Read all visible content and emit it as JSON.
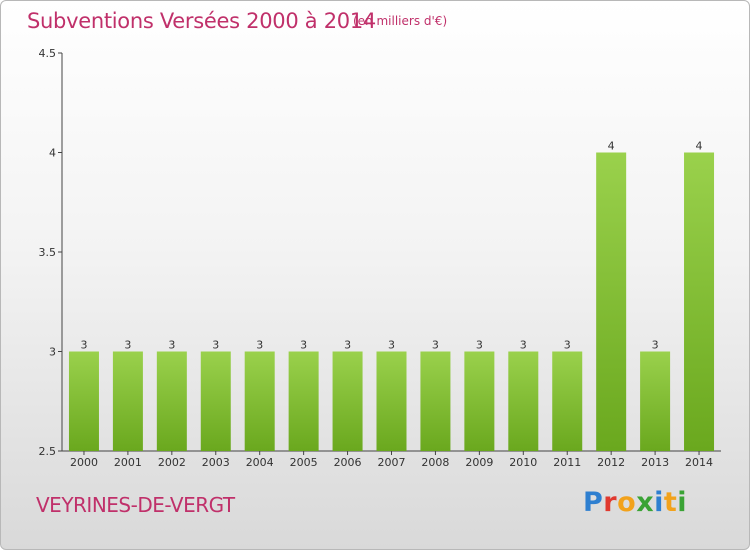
{
  "title": "Subventions Versées 2000 à 2014",
  "subtitle": "(en milliers d'€)",
  "commune": "VEYRINES-DE-VERGT",
  "logo": {
    "text": "Proxiti",
    "letters": [
      {
        "ch": "P",
        "color": "#2e7fd0"
      },
      {
        "ch": "r",
        "color": "#e0392f"
      },
      {
        "ch": "o",
        "color": "#f2a21b"
      },
      {
        "ch": "x",
        "color": "#3aa335"
      },
      {
        "ch": "i",
        "color": "#2e7fd0"
      },
      {
        "ch": "t",
        "color": "#f2a21b"
      },
      {
        "ch": "i",
        "color": "#3aa335"
      }
    ]
  },
  "colors": {
    "bar_top": "#9ad14c",
    "bar_bottom": "#6aa81e",
    "title": "#c0306a"
  },
  "chart_data": {
    "type": "bar",
    "categories": [
      "2000",
      "2001",
      "2002",
      "2003",
      "2004",
      "2005",
      "2006",
      "2007",
      "2008",
      "2009",
      "2010",
      "2011",
      "2012",
      "2013",
      "2014"
    ],
    "values": [
      3,
      3,
      3,
      3,
      3,
      3,
      3,
      3,
      3,
      3,
      3,
      3,
      4,
      3,
      4
    ],
    "data_labels": [
      "3",
      "3",
      "3",
      "3",
      "3",
      "3",
      "3",
      "3",
      "3",
      "3",
      "3",
      "3",
      "4",
      "3",
      "4"
    ],
    "ylim": [
      2.5,
      4.5
    ],
    "yticks": [
      "2.5",
      "3",
      "3.5",
      "4",
      "4.5"
    ],
    "ytick_values": [
      2.5,
      3,
      3.5,
      4,
      4.5
    ],
    "grid": false
  }
}
